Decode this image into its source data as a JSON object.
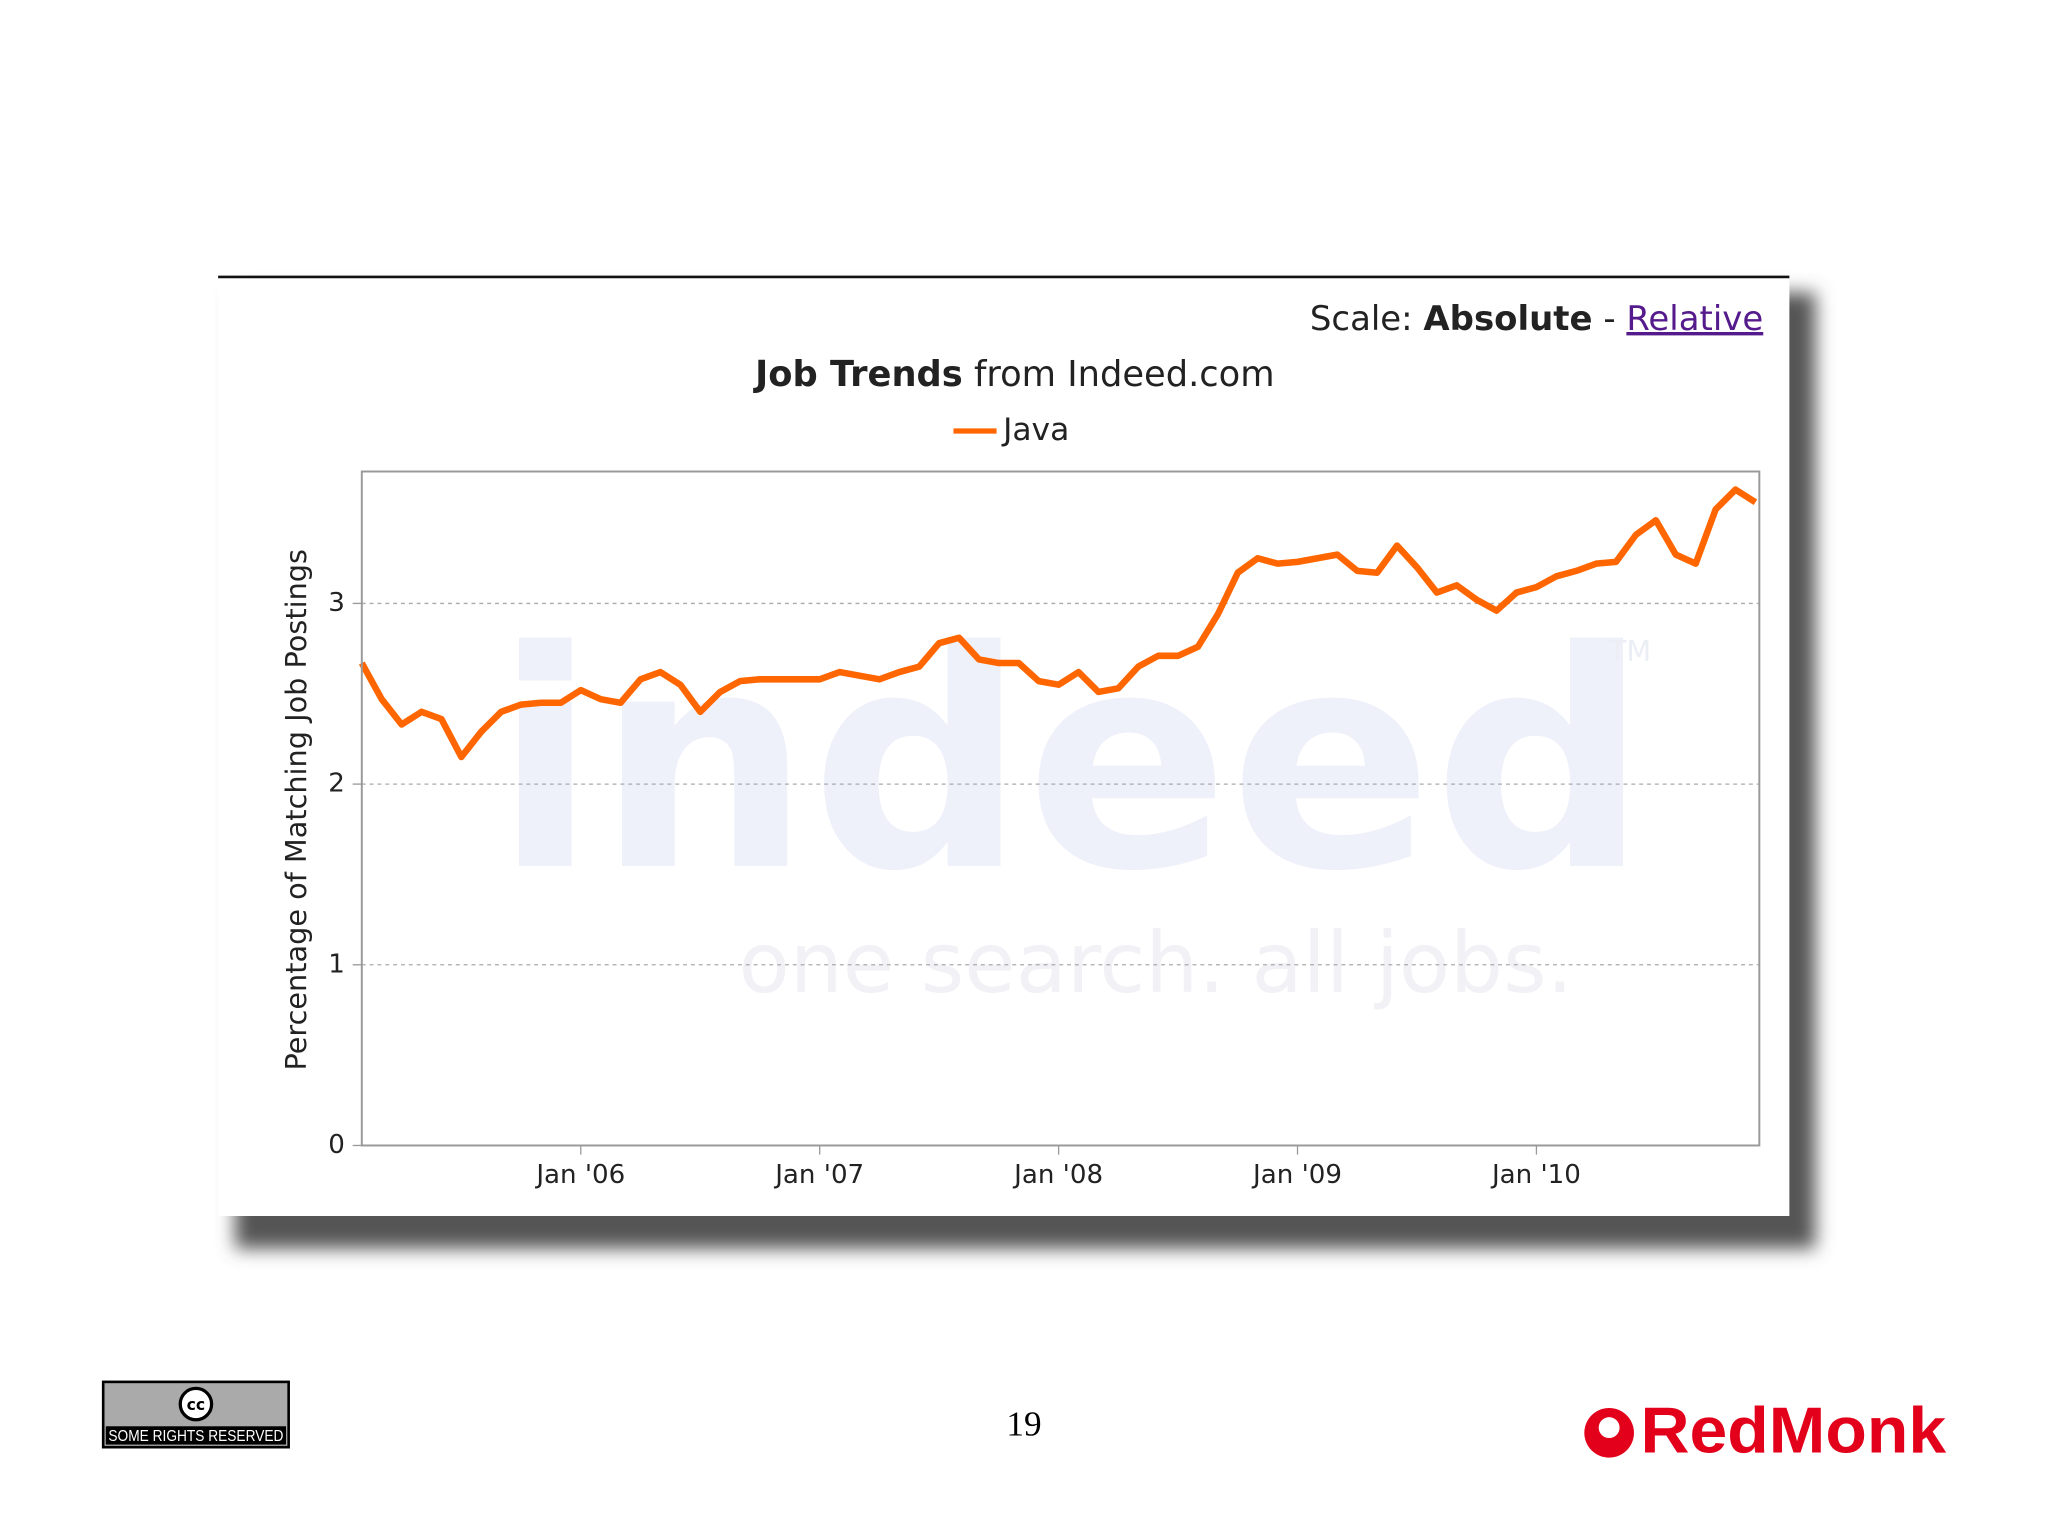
{
  "scale": {
    "label": "Scale:",
    "current": "Absolute",
    "separator": "-",
    "link": "Relative"
  },
  "chart_data": {
    "type": "line",
    "title": {
      "bold": "Job Trends",
      "rest": "from Indeed.com"
    },
    "y_label": "Percentage of Matching Job Postings",
    "watermark": {
      "logo": "indeed",
      "tagline": "one search. all jobs.",
      "mark": "TM"
    },
    "x": [
      "2005-02",
      "2005-03",
      "2005-04",
      "2005-05",
      "2005-06",
      "2005-07",
      "2005-08",
      "2005-09",
      "2005-10",
      "2005-11",
      "2005-12",
      "2006-01",
      "2006-02",
      "2006-03",
      "2006-04",
      "2006-05",
      "2006-06",
      "2006-07",
      "2006-08",
      "2006-09",
      "2006-10",
      "2006-11",
      "2006-12",
      "2007-01",
      "2007-02",
      "2007-03",
      "2007-04",
      "2007-05",
      "2007-06",
      "2007-07",
      "2007-08",
      "2007-09",
      "2007-10",
      "2007-11",
      "2007-12",
      "2008-01",
      "2008-02",
      "2008-03",
      "2008-04",
      "2008-05",
      "2008-06",
      "2008-07",
      "2008-08",
      "2008-09",
      "2008-10",
      "2008-11",
      "2008-12",
      "2009-01",
      "2009-02",
      "2009-03",
      "2009-04",
      "2009-05",
      "2009-06",
      "2009-07",
      "2009-08",
      "2009-09",
      "2009-10",
      "2009-11",
      "2009-12",
      "2010-01",
      "2010-02",
      "2010-03",
      "2010-04",
      "2010-05",
      "2010-06",
      "2010-07",
      "2010-08",
      "2010-09",
      "2010-10",
      "2010-11",
      "2010-12"
    ],
    "series": [
      {
        "name": "Java",
        "color": "#ff6600",
        "values": [
          2.67,
          2.47,
          2.33,
          2.4,
          2.36,
          2.15,
          2.29,
          2.4,
          2.44,
          2.45,
          2.45,
          2.52,
          2.47,
          2.45,
          2.58,
          2.62,
          2.55,
          2.4,
          2.51,
          2.57,
          2.58,
          2.58,
          2.58,
          2.58,
          2.62,
          2.6,
          2.58,
          2.62,
          2.65,
          2.78,
          2.81,
          2.69,
          2.67,
          2.67,
          2.57,
          2.55,
          2.62,
          2.51,
          2.53,
          2.65,
          2.71,
          2.71,
          2.76,
          2.94,
          3.17,
          3.25,
          3.22,
          3.23,
          3.25,
          3.27,
          3.18,
          3.17,
          3.32,
          3.2,
          3.06,
          3.1,
          3.02,
          2.96,
          3.06,
          3.09,
          3.15,
          3.18,
          3.22,
          3.23,
          3.38,
          3.46,
          3.27,
          3.22,
          3.52,
          3.63,
          3.56
        ]
      }
    ],
    "xlim": [
      "2005-02",
      "2010-12"
    ],
    "xticks": [
      {
        "value": "2006-01",
        "label": "Jan '06"
      },
      {
        "value": "2007-01",
        "label": "Jan '07"
      },
      {
        "value": "2008-01",
        "label": "Jan '08"
      },
      {
        "value": "2009-01",
        "label": "Jan '09"
      },
      {
        "value": "2010-01",
        "label": "Jan '10"
      }
    ],
    "ylim": [
      0,
      3.73
    ],
    "yticks": [
      0,
      1,
      2,
      3
    ],
    "grid": true
  },
  "footer": {
    "page_number": "19",
    "cc": "cc",
    "license": "SOME RIGHTS RESERVED",
    "brand": "RedMonk"
  }
}
